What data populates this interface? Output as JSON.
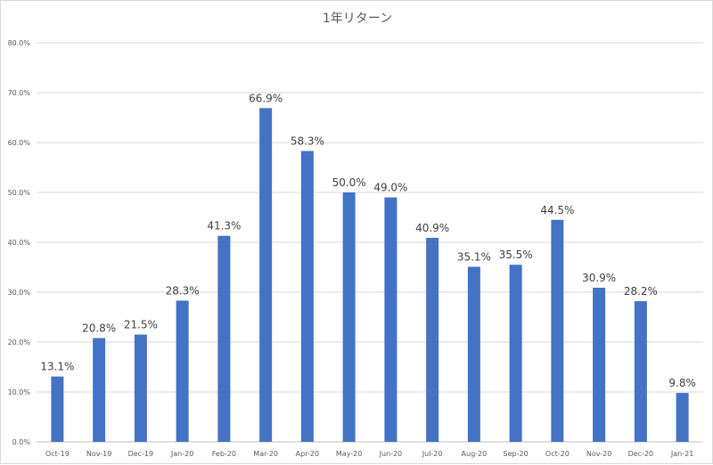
{
  "chart_data": {
    "type": "bar",
    "title": "1年リターン",
    "xlabel": "",
    "ylabel": "",
    "categories": [
      "Oct-19",
      "Nov-19",
      "Dec-19",
      "Jan-20",
      "Feb-20",
      "Mar-20",
      "Apr-20",
      "May-20",
      "Jun-20",
      "Jul-20",
      "Aug-20",
      "Sep-20",
      "Oct-20",
      "Nov-20",
      "Dec-20",
      "Jan-21"
    ],
    "values": [
      13.1,
      20.8,
      21.5,
      28.3,
      41.3,
      66.9,
      58.3,
      50.0,
      49.0,
      40.9,
      35.1,
      35.5,
      44.5,
      30.9,
      28.2,
      9.8
    ],
    "data_labels": [
      "13.1%",
      "20.8%",
      "21.5%",
      "28.3%",
      "41.3%",
      "66.9%",
      "58.3%",
      "50.0%",
      "49.0%",
      "40.9%",
      "35.1%",
      "35.5%",
      "44.5%",
      "30.9%",
      "28.2%",
      "9.8%"
    ],
    "ylim": [
      0,
      80
    ],
    "yticks": [
      0,
      10,
      20,
      30,
      40,
      50,
      60,
      70,
      80
    ],
    "ytick_labels": [
      "0.0%",
      "10.0%",
      "20.0%",
      "30.0%",
      "40.0%",
      "50.0%",
      "60.0%",
      "70.0%",
      "80.0%"
    ],
    "grid": true,
    "legend": "none",
    "bar_color": "#4472c4"
  }
}
